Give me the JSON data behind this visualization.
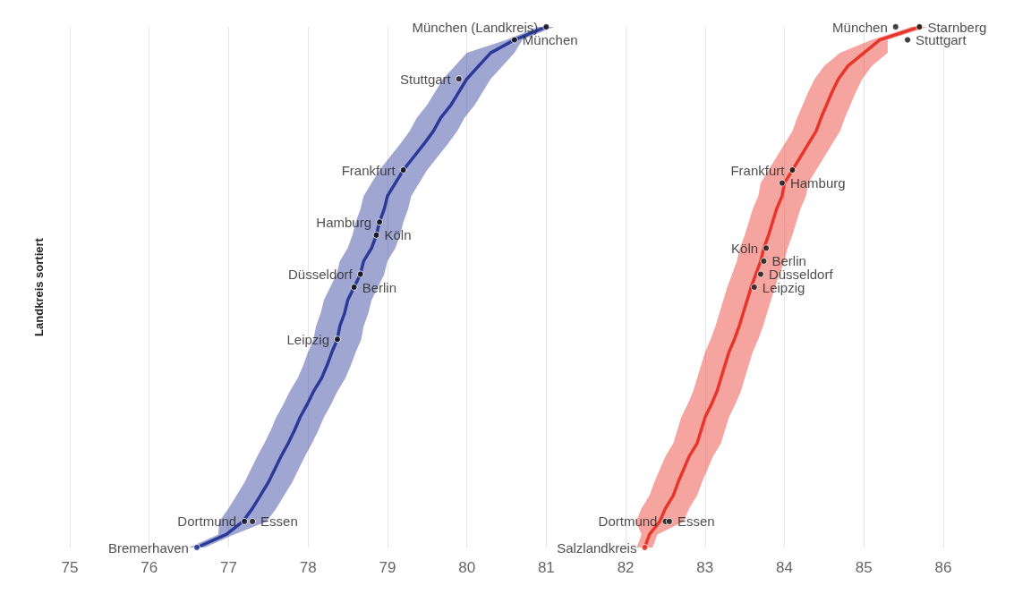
{
  "chart_data": {
    "type": "line",
    "orientation": "horizontal",
    "ylabel": "Landkreis sortiert",
    "categories": [
      null,
      null,
      null,
      null,
      null,
      null,
      null,
      null,
      null,
      null,
      null,
      null,
      null,
      null,
      null,
      null,
      null,
      null,
      null,
      null,
      null,
      null,
      null,
      null,
      null,
      null,
      null,
      null,
      null,
      null,
      null,
      null,
      null,
      null,
      null,
      null,
      null,
      null,
      null,
      null,
      null
    ],
    "xlim": [
      75,
      86
    ],
    "xticks": [
      75,
      76,
      77,
      78,
      79,
      80,
      81,
      82,
      83,
      84,
      85,
      86
    ],
    "grid": "x",
    "tick_labels": "x",
    "series": [
      {
        "color": "#2b3a99",
        "values": [
          81.0,
          80.6,
          80.3,
          80.15,
          80.0,
          79.9,
          79.8,
          79.67,
          79.58,
          79.46,
          79.33,
          79.2,
          79.1,
          79.0,
          78.96,
          78.9,
          78.86,
          78.8,
          78.7,
          78.66,
          78.58,
          78.5,
          78.46,
          78.4,
          78.37,
          78.3,
          78.24,
          78.17,
          78.07,
          77.99,
          77.9,
          77.83,
          77.75,
          77.66,
          77.58,
          77.5,
          77.4,
          77.3,
          77.18,
          76.97,
          76.6
        ],
        "lower": [
          80.9,
          80.5,
          80.0,
          79.85,
          79.7,
          79.6,
          79.5,
          79.37,
          79.28,
          79.16,
          79.03,
          78.9,
          78.8,
          78.7,
          78.66,
          78.6,
          78.56,
          78.5,
          78.4,
          78.36,
          78.28,
          78.2,
          78.16,
          78.1,
          78.07,
          78.0,
          77.94,
          77.87,
          77.77,
          77.69,
          77.6,
          77.53,
          77.45,
          77.36,
          77.28,
          77.2,
          77.1,
          77.0,
          76.88,
          76.87,
          76.5
        ],
        "upper": [
          81.1,
          80.7,
          80.6,
          80.45,
          80.3,
          80.2,
          80.1,
          79.97,
          79.88,
          79.76,
          79.63,
          79.5,
          79.4,
          79.3,
          79.26,
          79.2,
          79.16,
          79.1,
          79.0,
          78.96,
          78.88,
          78.8,
          78.76,
          78.7,
          78.67,
          78.6,
          78.54,
          78.47,
          78.37,
          78.29,
          78.2,
          78.13,
          78.05,
          77.96,
          77.88,
          77.8,
          77.7,
          77.6,
          77.48,
          77.07,
          76.7
        ]
      },
      {
        "color": "#e8352a",
        "values": [
          85.7,
          85.2,
          85.0,
          84.8,
          84.68,
          84.6,
          84.53,
          84.46,
          84.4,
          84.3,
          84.2,
          84.1,
          84.0,
          83.97,
          83.9,
          83.85,
          83.8,
          83.74,
          83.7,
          83.64,
          83.58,
          83.53,
          83.48,
          83.43,
          83.37,
          83.3,
          83.25,
          83.2,
          83.15,
          83.08,
          83.0,
          82.95,
          82.9,
          82.8,
          82.73,
          82.66,
          82.6,
          82.5,
          82.43,
          82.3,
          82.24
        ],
        "lower": [
          85.6,
          85.1,
          84.7,
          84.5,
          84.38,
          84.3,
          84.23,
          84.16,
          84.1,
          84.0,
          83.9,
          83.8,
          83.7,
          83.67,
          83.6,
          83.55,
          83.5,
          83.44,
          83.4,
          83.34,
          83.28,
          83.23,
          83.18,
          83.13,
          83.07,
          83.0,
          82.95,
          82.9,
          82.85,
          82.78,
          82.7,
          82.65,
          82.6,
          82.5,
          82.43,
          82.36,
          82.3,
          82.2,
          82.13,
          82.2,
          82.14
        ],
        "upper": [
          85.8,
          85.3,
          85.3,
          85.1,
          84.98,
          84.9,
          84.83,
          84.76,
          84.7,
          84.6,
          84.5,
          84.4,
          84.3,
          84.27,
          84.2,
          84.15,
          84.1,
          84.04,
          84.0,
          83.94,
          83.88,
          83.83,
          83.78,
          83.73,
          83.67,
          83.6,
          83.55,
          83.5,
          83.45,
          83.38,
          83.3,
          83.25,
          83.2,
          83.1,
          83.03,
          82.96,
          82.9,
          82.8,
          82.73,
          82.4,
          82.34
        ]
      },
      {
        "type": "scatter",
        "name": "München (Landkreis)",
        "color": "#111111",
        "values": [
          81.0,
          null,
          null,
          null,
          null,
          null,
          null,
          null,
          null,
          null,
          null,
          null,
          null,
          null,
          null,
          null,
          null,
          null,
          null,
          null,
          null,
          null,
          null,
          null,
          null,
          null,
          null,
          null,
          null,
          null,
          null,
          null,
          null,
          null,
          null,
          null,
          null,
          null,
          null,
          null,
          null
        ]
      },
      {
        "type": "scatter",
        "name": "München",
        "color": "#111111",
        "values": [
          null,
          80.6,
          null,
          null,
          null,
          null,
          null,
          null,
          null,
          null,
          null,
          null,
          null,
          null,
          null,
          null,
          null,
          null,
          null,
          null,
          null,
          null,
          null,
          null,
          null,
          null,
          null,
          null,
          null,
          null,
          null,
          null,
          null,
          null,
          null,
          null,
          null,
          null,
          null,
          null,
          null
        ]
      },
      {
        "type": "scatter",
        "name": "Stuttgart",
        "color": "#111111",
        "values": [
          null,
          null,
          null,
          null,
          79.9,
          null,
          null,
          null,
          null,
          null,
          null,
          null,
          null,
          null,
          null,
          null,
          null,
          null,
          null,
          null,
          null,
          null,
          null,
          null,
          null,
          null,
          null,
          null,
          null,
          null,
          null,
          null,
          null,
          null,
          null,
          null,
          null,
          null,
          null,
          null,
          null
        ]
      },
      {
        "type": "scatter",
        "name": "Frankfurt",
        "color": "#111111",
        "values": [
          null,
          null,
          null,
          null,
          null,
          null,
          null,
          null,
          null,
          null,
          null,
          79.2,
          null,
          null,
          null,
          null,
          null,
          null,
          null,
          null,
          null,
          null,
          null,
          null,
          null,
          null,
          null,
          null,
          null,
          null,
          null,
          null,
          null,
          null,
          null,
          null,
          null,
          null,
          null,
          null,
          null
        ]
      },
      {
        "type": "scatter",
        "name": "Hamburg",
        "color": "#111111",
        "values": [
          null,
          null,
          null,
          null,
          null,
          null,
          null,
          null,
          null,
          null,
          null,
          null,
          null,
          null,
          null,
          78.9,
          null,
          null,
          null,
          null,
          null,
          null,
          null,
          null,
          null,
          null,
          null,
          null,
          null,
          null,
          null,
          null,
          null,
          null,
          null,
          null,
          null,
          null,
          null,
          null,
          null
        ]
      },
      {
        "type": "scatter",
        "name": "Köln",
        "color": "#111111",
        "values": [
          null,
          null,
          null,
          null,
          null,
          null,
          null,
          null,
          null,
          null,
          null,
          null,
          null,
          null,
          null,
          null,
          78.86,
          null,
          null,
          null,
          null,
          null,
          null,
          null,
          null,
          null,
          null,
          null,
          null,
          null,
          null,
          null,
          null,
          null,
          null,
          null,
          null,
          null,
          null,
          null,
          null
        ]
      },
      {
        "type": "scatter",
        "name": "Düsseldorf",
        "color": "#111111",
        "values": [
          null,
          null,
          null,
          null,
          null,
          null,
          null,
          null,
          null,
          null,
          null,
          null,
          null,
          null,
          null,
          null,
          null,
          null,
          null,
          78.66,
          null,
          null,
          null,
          null,
          null,
          null,
          null,
          null,
          null,
          null,
          null,
          null,
          null,
          null,
          null,
          null,
          null,
          null,
          null,
          null,
          null
        ]
      },
      {
        "type": "scatter",
        "name": "Berlin",
        "color": "#111111",
        "values": [
          null,
          null,
          null,
          null,
          null,
          null,
          null,
          null,
          null,
          null,
          null,
          null,
          null,
          null,
          null,
          null,
          null,
          null,
          null,
          null,
          78.58,
          null,
          null,
          null,
          null,
          null,
          null,
          null,
          null,
          null,
          null,
          null,
          null,
          null,
          null,
          null,
          null,
          null,
          null,
          null,
          null
        ]
      },
      {
        "type": "scatter",
        "name": "Leipzig",
        "color": "#111111",
        "values": [
          null,
          null,
          null,
          null,
          null,
          null,
          null,
          null,
          null,
          null,
          null,
          null,
          null,
          null,
          null,
          null,
          null,
          null,
          null,
          null,
          null,
          null,
          null,
          null,
          78.37,
          null,
          null,
          null,
          null,
          null,
          null,
          null,
          null,
          null,
          null,
          null,
          null,
          null,
          null,
          null,
          null
        ]
      },
      {
        "type": "scatter",
        "name": "Dortmund",
        "color": "#111111",
        "values": [
          null,
          null,
          null,
          null,
          null,
          null,
          null,
          null,
          null,
          null,
          null,
          null,
          null,
          null,
          null,
          null,
          null,
          null,
          null,
          null,
          null,
          null,
          null,
          null,
          null,
          null,
          null,
          null,
          null,
          null,
          null,
          null,
          null,
          null,
          null,
          null,
          null,
          null,
          77.2,
          null,
          null
        ]
      },
      {
        "type": "scatter",
        "name": "Essen",
        "color": "#111111",
        "values": [
          null,
          null,
          null,
          null,
          null,
          null,
          null,
          null,
          null,
          null,
          null,
          null,
          null,
          null,
          null,
          null,
          null,
          null,
          null,
          null,
          null,
          null,
          null,
          null,
          null,
          null,
          null,
          null,
          null,
          null,
          null,
          null,
          null,
          null,
          null,
          null,
          null,
          null,
          77.3,
          null,
          null
        ]
      },
      {
        "type": "scatter",
        "name": "Bremerhaven",
        "color": "#2b3a99",
        "values": [
          null,
          null,
          null,
          null,
          null,
          null,
          null,
          null,
          null,
          null,
          null,
          null,
          null,
          null,
          null,
          null,
          null,
          null,
          null,
          null,
          null,
          null,
          null,
          null,
          null,
          null,
          null,
          null,
          null,
          null,
          null,
          null,
          null,
          null,
          null,
          null,
          null,
          null,
          null,
          null,
          76.6
        ]
      },
      {
        "type": "scatter",
        "name": "München",
        "color": "#111111",
        "values": [
          85.4,
          null,
          null,
          null,
          null,
          null,
          null,
          null,
          null,
          null,
          null,
          null,
          null,
          null,
          null,
          null,
          null,
          null,
          null,
          null,
          null,
          null,
          null,
          null,
          null,
          null,
          null,
          null,
          null,
          null,
          null,
          null,
          null,
          null,
          null,
          null,
          null,
          null,
          null,
          null,
          null
        ]
      },
      {
        "type": "scatter",
        "name": "Starnberg",
        "color": "#111111",
        "values": [
          85.7,
          null,
          null,
          null,
          null,
          null,
          null,
          null,
          null,
          null,
          null,
          null,
          null,
          null,
          null,
          null,
          null,
          null,
          null,
          null,
          null,
          null,
          null,
          null,
          null,
          null,
          null,
          null,
          null,
          null,
          null,
          null,
          null,
          null,
          null,
          null,
          null,
          null,
          null,
          null,
          null
        ]
      },
      {
        "type": "scatter",
        "name": "Stuttgart",
        "color": "#111111",
        "values": [
          null,
          85.55,
          null,
          null,
          null,
          null,
          null,
          null,
          null,
          null,
          null,
          null,
          null,
          null,
          null,
          null,
          null,
          null,
          null,
          null,
          null,
          null,
          null,
          null,
          null,
          null,
          null,
          null,
          null,
          null,
          null,
          null,
          null,
          null,
          null,
          null,
          null,
          null,
          null,
          null,
          null
        ]
      },
      {
        "type": "scatter",
        "name": "Frankfurt",
        "color": "#111111",
        "values": [
          null,
          null,
          null,
          null,
          null,
          null,
          null,
          null,
          null,
          null,
          null,
          84.1,
          null,
          null,
          null,
          null,
          null,
          null,
          null,
          null,
          null,
          null,
          null,
          null,
          null,
          null,
          null,
          null,
          null,
          null,
          null,
          null,
          null,
          null,
          null,
          null,
          null,
          null,
          null,
          null,
          null
        ]
      },
      {
        "type": "scatter",
        "name": "Hamburg",
        "color": "#111111",
        "values": [
          null,
          null,
          null,
          null,
          null,
          null,
          null,
          null,
          null,
          null,
          null,
          null,
          83.97,
          null,
          null,
          null,
          null,
          null,
          null,
          null,
          null,
          null,
          null,
          null,
          null,
          null,
          null,
          null,
          null,
          null,
          null,
          null,
          null,
          null,
          null,
          null,
          null,
          null,
          null,
          null,
          null
        ]
      },
      {
        "type": "scatter",
        "name": "Köln",
        "color": "#111111",
        "values": [
          null,
          null,
          null,
          null,
          null,
          null,
          null,
          null,
          null,
          null,
          null,
          null,
          null,
          null,
          null,
          null,
          null,
          83.77,
          null,
          null,
          null,
          null,
          null,
          null,
          null,
          null,
          null,
          null,
          null,
          null,
          null,
          null,
          null,
          null,
          null,
          null,
          null,
          null,
          null,
          null,
          null
        ]
      },
      {
        "type": "scatter",
        "name": "Berlin",
        "color": "#111111",
        "values": [
          null,
          null,
          null,
          null,
          null,
          null,
          null,
          null,
          null,
          null,
          null,
          null,
          null,
          null,
          null,
          null,
          null,
          null,
          83.74,
          null,
          null,
          null,
          null,
          null,
          null,
          null,
          null,
          null,
          null,
          null,
          null,
          null,
          null,
          null,
          null,
          null,
          null,
          null,
          null,
          null,
          null
        ]
      },
      {
        "type": "scatter",
        "name": "Düsseldorf",
        "color": "#111111",
        "values": [
          null,
          null,
          null,
          null,
          null,
          null,
          null,
          null,
          null,
          null,
          null,
          null,
          null,
          null,
          null,
          null,
          null,
          null,
          null,
          83.7,
          null,
          null,
          null,
          null,
          null,
          null,
          null,
          null,
          null,
          null,
          null,
          null,
          null,
          null,
          null,
          null,
          null,
          null,
          null,
          null,
          null
        ]
      },
      {
        "type": "scatter",
        "name": "Leipzig",
        "color": "#111111",
        "values": [
          null,
          null,
          null,
          null,
          null,
          null,
          null,
          null,
          null,
          null,
          null,
          null,
          null,
          null,
          null,
          null,
          null,
          null,
          null,
          null,
          83.62,
          null,
          null,
          null,
          null,
          null,
          null,
          null,
          null,
          null,
          null,
          null,
          null,
          null,
          null,
          null,
          null,
          null,
          null,
          null,
          null
        ]
      },
      {
        "type": "scatter",
        "name": "Dortmund",
        "color": "#111111",
        "values": [
          null,
          null,
          null,
          null,
          null,
          null,
          null,
          null,
          null,
          null,
          null,
          null,
          null,
          null,
          null,
          null,
          null,
          null,
          null,
          null,
          null,
          null,
          null,
          null,
          null,
          null,
          null,
          null,
          null,
          null,
          null,
          null,
          null,
          null,
          null,
          null,
          null,
          null,
          82.5,
          null,
          null
        ]
      },
      {
        "type": "scatter",
        "name": "Essen",
        "color": "#111111",
        "values": [
          null,
          null,
          null,
          null,
          null,
          null,
          null,
          null,
          null,
          null,
          null,
          null,
          null,
          null,
          null,
          null,
          null,
          null,
          null,
          null,
          null,
          null,
          null,
          null,
          null,
          null,
          null,
          null,
          null,
          null,
          null,
          null,
          null,
          null,
          null,
          null,
          null,
          null,
          82.55,
          null,
          null
        ]
      },
      {
        "type": "scatter",
        "name": "Salzlandkreis",
        "color": "#e8352a",
        "values": [
          null,
          null,
          null,
          null,
          null,
          null,
          null,
          null,
          null,
          null,
          null,
          null,
          null,
          null,
          null,
          null,
          null,
          null,
          null,
          null,
          null,
          null,
          null,
          null,
          null,
          null,
          null,
          null,
          null,
          null,
          null,
          null,
          null,
          null,
          null,
          null,
          null,
          null,
          null,
          null,
          82.24
        ]
      }
    ]
  }
}
